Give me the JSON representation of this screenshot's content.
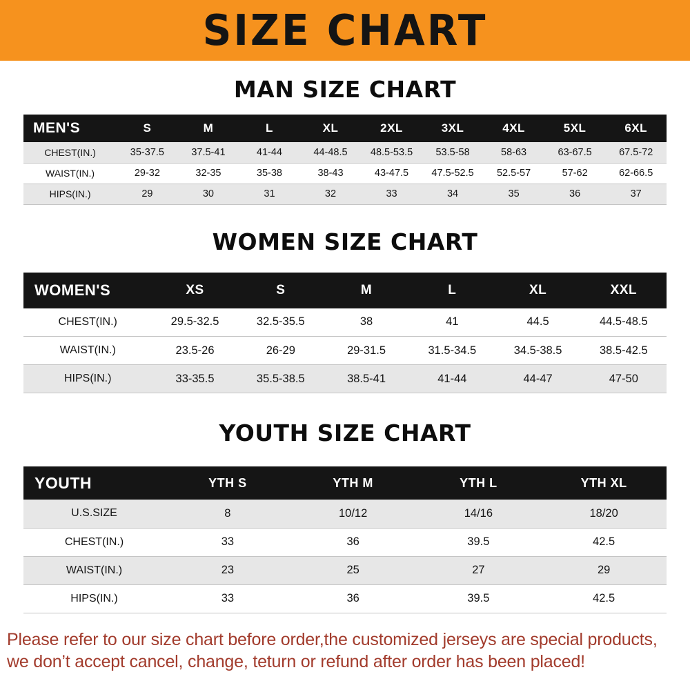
{
  "banner": {
    "title": "SIZE CHART"
  },
  "colors": {
    "banner_bg": "#f6921e",
    "header_bg": "#151515",
    "stripe": "#e7e7e7",
    "footer_text": "#a23b2c"
  },
  "sections": [
    {
      "heading": "MAN SIZE CHART",
      "table": {
        "name": "mens",
        "header": [
          "MEN'S",
          "S",
          "M",
          "L",
          "XL",
          "2XL",
          "3XL",
          "4XL",
          "5XL",
          "6XL"
        ],
        "rows": [
          {
            "label": "CHEST(IN.)",
            "shaded": true,
            "values": [
              "35-37.5",
              "37.5-41",
              "41-44",
              "44-48.5",
              "48.5-53.5",
              "53.5-58",
              "58-63",
              "63-67.5",
              "67.5-72"
            ]
          },
          {
            "label": "WAIST(IN.)",
            "shaded": false,
            "values": [
              "29-32",
              "32-35",
              "35-38",
              "38-43",
              "43-47.5",
              "47.5-52.5",
              "52.5-57",
              "57-62",
              "62-66.5"
            ]
          },
          {
            "label": "HIPS(IN.)",
            "shaded": true,
            "values": [
              "29",
              "30",
              "31",
              "32",
              "33",
              "34",
              "35",
              "36",
              "37"
            ]
          }
        ]
      }
    },
    {
      "heading": "WOMEN SIZE CHART",
      "table": {
        "name": "womens",
        "header": [
          "WOMEN'S",
          "XS",
          "S",
          "M",
          "L",
          "XL",
          "XXL"
        ],
        "rows": [
          {
            "label": "CHEST(IN.)",
            "shaded": false,
            "values": [
              "29.5-32.5",
              "32.5-35.5",
              "38",
              "41",
              "44.5",
              "44.5-48.5"
            ]
          },
          {
            "label": "WAIST(IN.)",
            "shaded": false,
            "values": [
              "23.5-26",
              "26-29",
              "29-31.5",
              "31.5-34.5",
              "34.5-38.5",
              "38.5-42.5"
            ]
          },
          {
            "label": "HIPS(IN.)",
            "shaded": true,
            "values": [
              "33-35.5",
              "35.5-38.5",
              "38.5-41",
              "41-44",
              "44-47",
              "47-50"
            ]
          }
        ]
      }
    },
    {
      "heading": "YOUTH SIZE CHART",
      "table": {
        "name": "youth",
        "header": [
          "YOUTH",
          "YTH S",
          "YTH M",
          "YTH L",
          "YTH XL"
        ],
        "rows": [
          {
            "label": "U.S.SIZE",
            "shaded": true,
            "values": [
              "8",
              "10/12",
              "14/16",
              "18/20"
            ]
          },
          {
            "label": "CHEST(IN.)",
            "shaded": false,
            "values": [
              "33",
              "36",
              "39.5",
              "42.5"
            ]
          },
          {
            "label": "WAIST(IN.)",
            "shaded": true,
            "values": [
              "23",
              "25",
              "27",
              "29"
            ]
          },
          {
            "label": "HIPS(IN.)",
            "shaded": false,
            "values": [
              "33",
              "36",
              "39.5",
              "42.5"
            ]
          }
        ]
      }
    }
  ],
  "footer": {
    "lines": [
      "Please refer to our size chart before order,the customized jerseys are special products,",
      "we don’t accept cancel, change, teturn or refund after order has been placed!"
    ]
  }
}
